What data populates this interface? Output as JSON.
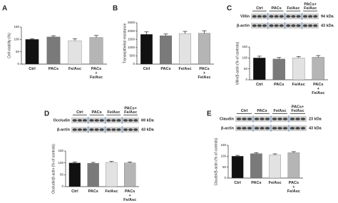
{
  "chart_data": [
    {
      "type": "bar",
      "panel": "A",
      "ylabel": "Cell viability (%)",
      "categories": [
        "Ctrl",
        "PACs",
        "Fe/Asc",
        "PACs + Fe/Asc"
      ],
      "values": [
        100,
        110,
        95,
        108
      ],
      "errors": [
        3,
        5,
        7,
        8
      ],
      "colors": [
        "#111111",
        "#7a7a7a",
        "#e2e2e2",
        "#b5b5b5"
      ],
      "ylim": [
        0,
        150
      ],
      "yticks": [
        0,
        50,
        100,
        150
      ]
    },
    {
      "type": "bar",
      "panel": "B",
      "ylabel": "Transepithelial resistance",
      "categories": [
        "Ctrl",
        "PACs",
        "Fe/Asc",
        "PACs + Fe/Asc"
      ],
      "values": [
        1800,
        1720,
        1850,
        1870
      ],
      "errors": [
        150,
        100,
        130,
        150
      ],
      "colors": [
        "#111111",
        "#7a7a7a",
        "#e2e2e2",
        "#b5b5b5"
      ],
      "ylim": [
        0,
        2500
      ],
      "yticks": [
        0,
        500,
        1000,
        1500,
        2000,
        2500
      ]
    },
    {
      "type": "bar",
      "panel": "C",
      "ylabel": "Villin/β-actin (% of controls)",
      "categories": [
        "Ctrl",
        "PACs",
        "Fe/Asc",
        "PACs + Fe/Asc"
      ],
      "values": [
        100,
        95,
        100,
        103
      ],
      "errors": [
        8,
        7,
        6,
        8
      ],
      "colors": [
        "#111111",
        "#7a7a7a",
        "#e2e2e2",
        "#b5b5b5"
      ],
      "ylim": [
        0,
        150
      ],
      "yticks": [
        0,
        50,
        100,
        150
      ],
      "blot": {
        "lanes": [
          "Ctrl",
          "PACs",
          "Fe/Asc",
          "PACs+ Fe/Asc"
        ],
        "bands": [
          {
            "label": "Villin",
            "size": "94 kDa"
          },
          {
            "label": "β-actin",
            "size": "43 kDa"
          }
        ]
      }
    },
    {
      "type": "bar",
      "panel": "D",
      "ylabel": "Occludin/β-actin (% of controls)",
      "categories": [
        "Ctrl",
        "PACs",
        "Fe/Asc",
        "PACs + Fe/Asc"
      ],
      "values": [
        100,
        98,
        102,
        100
      ],
      "errors": [
        4,
        4,
        4,
        4
      ],
      "colors": [
        "#111111",
        "#7a7a7a",
        "#e2e2e2",
        "#b5b5b5"
      ],
      "ylim": [
        0,
        150
      ],
      "yticks": [
        0,
        50,
        100,
        150
      ],
      "blot": {
        "lanes": [
          "Ctrl",
          "PACs",
          "Fe/Asc",
          "PACs+ Fe/Asc"
        ],
        "bands": [
          {
            "label": "Occludin",
            "size": "69 kDa"
          },
          {
            "label": "β-actin",
            "size": "43 kDa"
          }
        ]
      }
    },
    {
      "type": "bar",
      "panel": "E",
      "ylabel": "Claudin/β-actin (% of controls)",
      "categories": [
        "Ctrl",
        "PACs",
        "Fe/Asc",
        "PACs + Fe/Asc"
      ],
      "values": [
        100,
        112,
        106,
        116
      ],
      "errors": [
        4,
        4,
        5,
        5
      ],
      "colors": [
        "#111111",
        "#7a7a7a",
        "#e2e2e2",
        "#b5b5b5"
      ],
      "ylim": [
        0,
        150
      ],
      "yticks": [
        0,
        50,
        100,
        150
      ],
      "blot": {
        "lanes": [
          "Ctrl",
          "PACs",
          "Fe/Asc",
          "PACs+ Fe/Asc"
        ],
        "bands": [
          {
            "label": "Claudin",
            "size": "23 kDa"
          },
          {
            "label": "β-actin",
            "size": "43 kDa"
          }
        ]
      }
    }
  ]
}
